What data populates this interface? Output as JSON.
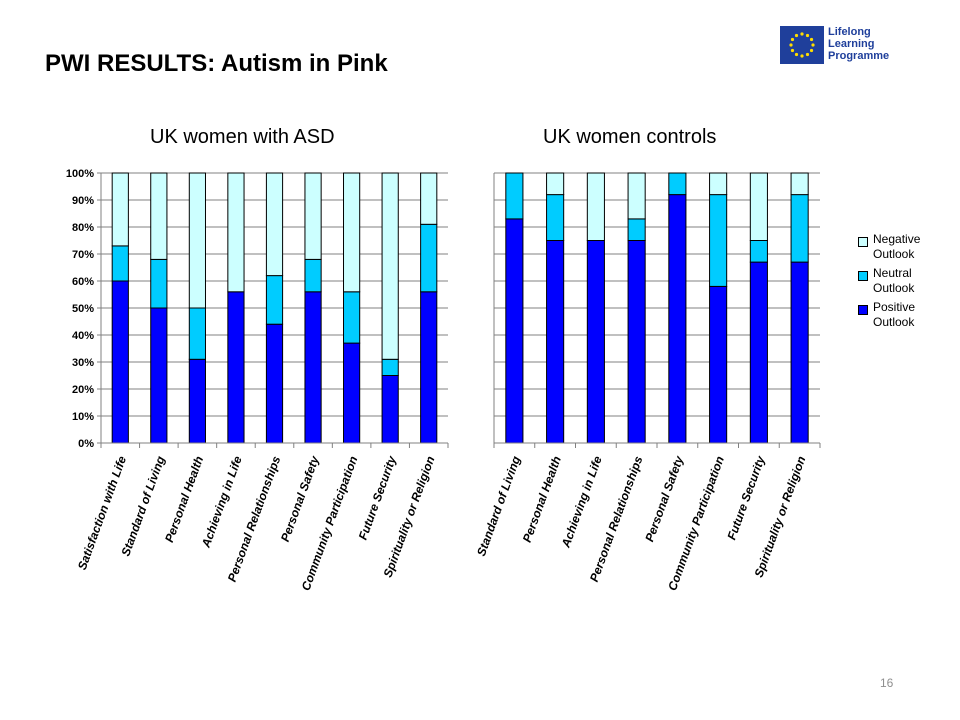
{
  "slide": {
    "title": "PWI RESULTS: Autism in Pink",
    "page_number": "16"
  },
  "logo": {
    "line1": "Lifelong",
    "line2": "Learning",
    "line3": "Programme",
    "flag_color": "#1f3f9b",
    "star_color": "#ffdd00"
  },
  "colors": {
    "negative": "#ccffff",
    "neutral": "#00ccff",
    "positive": "#0000ff",
    "grid": "#808080"
  },
  "legend": [
    {
      "label": "Negative Outlook",
      "color": "#ccffff"
    },
    {
      "label": "Neutral Outlook",
      "color": "#00ccff"
    },
    {
      "label": "Positive Outlook",
      "color": "#0000ff"
    }
  ],
  "chart_data": [
    {
      "type": "bar",
      "stacked": true,
      "title": "UK women with ASD",
      "xlabel": "",
      "ylabel": "",
      "ylim": [
        0,
        100
      ],
      "yticks": [
        "0%",
        "10%",
        "20%",
        "30%",
        "40%",
        "50%",
        "60%",
        "70%",
        "80%",
        "90%",
        "100%"
      ],
      "grid": true,
      "categories": [
        "Satisfaction with Life",
        "Standard of Living",
        "Personal Health",
        "Achieving in Life",
        "Personal Relationships",
        "Personal Safety",
        "Community Participation",
        "Future Security",
        "Spirituality or Religion"
      ],
      "series": [
        {
          "name": "Positive Outlook",
          "values": [
            60,
            50,
            31,
            56,
            44,
            56,
            37,
            25,
            56
          ]
        },
        {
          "name": "Neutral Outlook",
          "values": [
            13,
            18,
            19,
            0,
            18,
            12,
            19,
            6,
            25
          ]
        },
        {
          "name": "Negative Outlook",
          "values": [
            27,
            32,
            50,
            44,
            38,
            32,
            44,
            69,
            19
          ]
        }
      ]
    },
    {
      "type": "bar",
      "stacked": true,
      "title": "UK women controls",
      "xlabel": "",
      "ylabel": "",
      "ylim": [
        0,
        100
      ],
      "grid": true,
      "legend_position": "right",
      "categories": [
        "Standard of Living",
        "Personal Health",
        "Achieving in Life",
        "Personal Relationships",
        "Personal Safety",
        "Community Participation",
        "Future Security",
        "Spirituality or Religion"
      ],
      "series": [
        {
          "name": "Positive Outlook",
          "values": [
            83,
            75,
            75,
            75,
            92,
            58,
            67,
            67
          ]
        },
        {
          "name": "Neutral Outlook",
          "values": [
            17,
            17,
            0,
            8,
            8,
            34,
            8,
            25
          ]
        },
        {
          "name": "Negative Outlook",
          "values": [
            0,
            8,
            25,
            17,
            0,
            8,
            25,
            8
          ]
        }
      ]
    }
  ]
}
